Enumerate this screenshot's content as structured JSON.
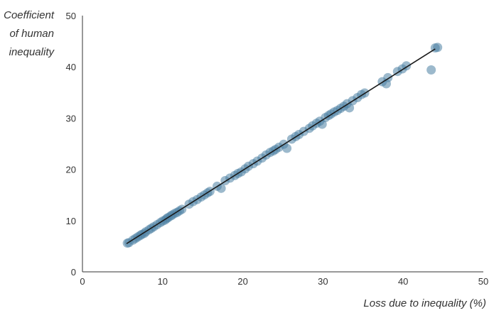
{
  "chart_data": {
    "type": "scatter",
    "xlabel": "Loss due to inequality (%)",
    "ylabel_lines": [
      "Coefficient",
      "of human",
      "inequality"
    ],
    "xlim": [
      0,
      50
    ],
    "ylim": [
      0,
      50
    ],
    "xticks": [
      0,
      10,
      20,
      30,
      40,
      50
    ],
    "yticks": [
      0,
      10,
      20,
      30,
      40,
      50
    ],
    "grid": false,
    "point_color": "#4a7fa3",
    "line_color": "#1a1a1a",
    "trendline": {
      "x": [
        5.5,
        44.0
      ],
      "y": [
        5.5,
        43.5
      ]
    },
    "points": [
      [
        5.6,
        5.6
      ],
      [
        5.8,
        5.7
      ],
      [
        6.3,
        6.2
      ],
      [
        6.6,
        6.5
      ],
      [
        6.9,
        6.8
      ],
      [
        7.2,
        7.1
      ],
      [
        7.4,
        7.3
      ],
      [
        7.7,
        7.5
      ],
      [
        7.9,
        7.8
      ],
      [
        8.3,
        8.2
      ],
      [
        8.6,
        8.5
      ],
      [
        8.9,
        8.8
      ],
      [
        9.3,
        9.2
      ],
      [
        9.7,
        9.6
      ],
      [
        10.0,
        9.9
      ],
      [
        10.3,
        10.1
      ],
      [
        10.5,
        10.4
      ],
      [
        10.7,
        10.6
      ],
      [
        11.0,
        10.9
      ],
      [
        11.2,
        11.1
      ],
      [
        11.5,
        11.4
      ],
      [
        11.8,
        11.6
      ],
      [
        12.1,
        11.9
      ],
      [
        12.4,
        12.2
      ],
      [
        13.3,
        13.2
      ],
      [
        13.8,
        13.7
      ],
      [
        14.3,
        14.1
      ],
      [
        14.8,
        14.6
      ],
      [
        15.2,
        15.0
      ],
      [
        15.6,
        15.4
      ],
      [
        15.9,
        15.7
      ],
      [
        16.8,
        16.7
      ],
      [
        17.3,
        16.3
      ],
      [
        17.8,
        17.8
      ],
      [
        18.4,
        18.3
      ],
      [
        19.0,
        18.8
      ],
      [
        19.4,
        19.2
      ],
      [
        19.8,
        19.5
      ],
      [
        20.3,
        20.1
      ],
      [
        20.7,
        20.6
      ],
      [
        21.3,
        21.1
      ],
      [
        21.8,
        21.6
      ],
      [
        22.4,
        22.2
      ],
      [
        22.9,
        22.8
      ],
      [
        23.4,
        23.3
      ],
      [
        23.8,
        23.6
      ],
      [
        24.1,
        23.9
      ],
      [
        24.5,
        24.3
      ],
      [
        25.1,
        24.9
      ],
      [
        25.5,
        24.1
      ],
      [
        26.1,
        25.9
      ],
      [
        26.6,
        26.4
      ],
      [
        27.0,
        26.8
      ],
      [
        27.6,
        27.4
      ],
      [
        28.3,
        28.0
      ],
      [
        28.7,
        28.5
      ],
      [
        29.2,
        29.0
      ],
      [
        29.6,
        29.4
      ],
      [
        29.9,
        28.8
      ],
      [
        30.3,
        30.1
      ],
      [
        30.7,
        30.5
      ],
      [
        31.0,
        30.8
      ],
      [
        31.4,
        31.2
      ],
      [
        31.8,
        31.5
      ],
      [
        32.2,
        31.9
      ],
      [
        32.6,
        32.3
      ],
      [
        33.0,
        32.8
      ],
      [
        33.3,
        32.0
      ],
      [
        33.7,
        33.4
      ],
      [
        34.3,
        34.0
      ],
      [
        34.8,
        34.6
      ],
      [
        35.2,
        34.9
      ],
      [
        37.4,
        37.1
      ],
      [
        37.9,
        36.7
      ],
      [
        38.1,
        37.9
      ],
      [
        39.3,
        39.1
      ],
      [
        39.9,
        39.6
      ],
      [
        40.4,
        40.2
      ],
      [
        43.5,
        39.4
      ],
      [
        44.0,
        43.7
      ],
      [
        44.3,
        43.8
      ]
    ]
  }
}
